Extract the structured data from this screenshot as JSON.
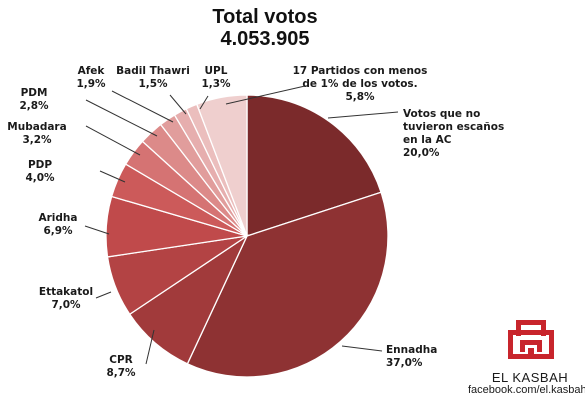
{
  "chart_data": {
    "type": "pie",
    "title": "Total votos",
    "subtitle": "4.053.905",
    "slices": [
      {
        "label": "Votos que no tuvieron escaños en la AC",
        "value_label": "20,0%",
        "value": 20.0,
        "color": "#7b2a2b"
      },
      {
        "label": "Ennadha",
        "value_label": "37,0%",
        "value": 37.0,
        "color": "#8e3233"
      },
      {
        "label": "CPR",
        "value_label": "8,7%",
        "value": 8.7,
        "color": "#a13a3b"
      },
      {
        "label": "Ettakatol",
        "value_label": "7,0%",
        "value": 7.0,
        "color": "#b34344"
      },
      {
        "label": "Aridha",
        "value_label": "6,9%",
        "value": 6.9,
        "color": "#c04a4b"
      },
      {
        "label": "PDP",
        "value_label": "4,0%",
        "value": 4.0,
        "color": "#cc5a5a"
      },
      {
        "label": "Mubadara",
        "value_label": "3,2%",
        "value": 3.2,
        "color": "#d57373"
      },
      {
        "label": "PDM",
        "value_label": "2,8%",
        "value": 2.8,
        "color": "#dc8a89"
      },
      {
        "label": "Afek",
        "value_label": "1,9%",
        "value": 1.9,
        "color": "#e19d9c"
      },
      {
        "label": "Badil Thawri",
        "value_label": "1,5%",
        "value": 1.5,
        "color": "#e6aeae"
      },
      {
        "label": "UPL",
        "value_label": "1,3%",
        "value": 1.3,
        "color": "#ebbebd"
      },
      {
        "label": "17 Partidos con menos de 1% de los votos.",
        "value_label": "5,8%",
        "value": 5.8,
        "color": "#efcfce"
      }
    ]
  },
  "labels": {
    "votos": [
      "Votos que no",
      "tuvieron escaños",
      "en la AC",
      "20,0%"
    ],
    "ennadha": [
      "Ennadha",
      "37,0%"
    ],
    "cpr": [
      "CPR",
      "8,7%"
    ],
    "ettakatol": [
      "Ettakatol",
      "7,0%"
    ],
    "aridha": [
      "Aridha",
      "6,9%"
    ],
    "pdp": [
      "PDP",
      "4,0%"
    ],
    "mubadara": [
      "Mubadara",
      "3,2%"
    ],
    "pdm": [
      "PDM",
      "2,8%"
    ],
    "afek": [
      "Afek",
      "1,9%"
    ],
    "badil": [
      "Badil Thawri",
      "1,5%"
    ],
    "upl": [
      "UPL",
      "1,3%"
    ],
    "partidos": [
      "17 Partidos con menos",
      "de 1% de los votos.",
      "5,8%"
    ]
  },
  "brand": {
    "name": "EL KASBAH",
    "url": "facebook.com/el.kasbah",
    "color": "#c8252c"
  }
}
